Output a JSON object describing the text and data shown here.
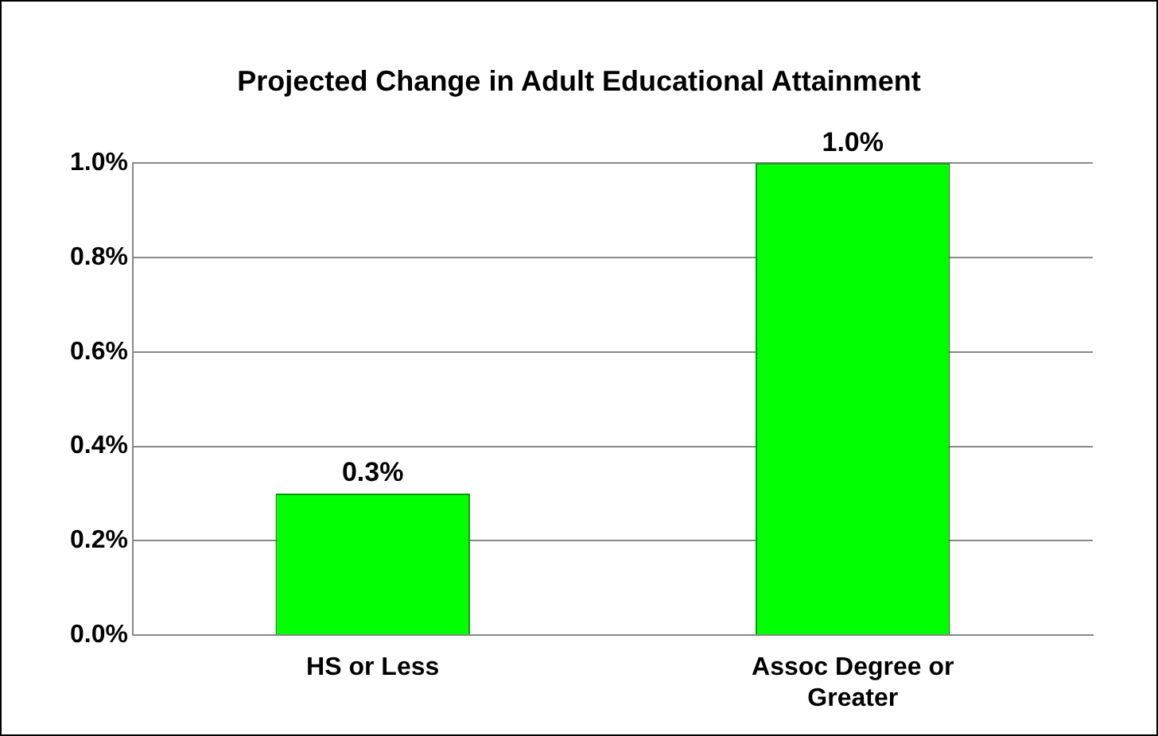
{
  "chart_data": {
    "type": "bar",
    "title": "Projected Change in Adult Educational Attainment",
    "categories": [
      "HS or Less",
      "Assoc Degree or Greater"
    ],
    "values": [
      0.3,
      1.0
    ],
    "color": "#00ff00",
    "value_labels": [
      "0.3%",
      "1.0%"
    ],
    "ylim": [
      0,
      1.0
    ],
    "yticks": [
      {
        "value": 0,
        "label": "0.0%"
      },
      {
        "value": 0.2,
        "label": "0.2%"
      },
      {
        "value": 0.4,
        "label": "0.4%"
      },
      {
        "value": 0.6,
        "label": "0.6%"
      },
      {
        "value": 0.8,
        "label": "0.8%"
      },
      {
        "value": 1.0,
        "label": "1.0%"
      }
    ],
    "grid": "y"
  }
}
